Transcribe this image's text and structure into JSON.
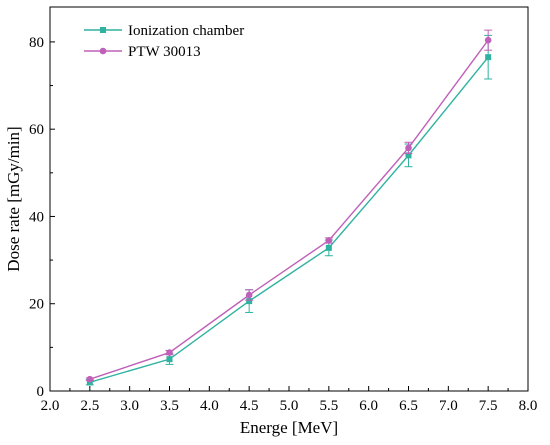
{
  "chart_data": {
    "type": "line",
    "xlabel": "Energe [MeV]",
    "ylabel": "Dose rate [mGy/min]",
    "xlim": [
      2.0,
      8.0
    ],
    "ylim": [
      0,
      88
    ],
    "x_ticks": [
      2.0,
      2.5,
      3.0,
      3.5,
      4.0,
      4.5,
      5.0,
      5.5,
      6.0,
      6.5,
      7.0,
      7.5,
      8.0
    ],
    "y_ticks": [
      0,
      20,
      40,
      60,
      80
    ],
    "x_tick_labels": [
      "2.0",
      "2.5",
      "3.0",
      "3.5",
      "4.0",
      "4.5",
      "5.0",
      "5.5",
      "6.0",
      "6.5",
      "7.0",
      "7.5",
      "8.0"
    ],
    "y_tick_labels": [
      "0",
      "20",
      "40",
      "60",
      "80"
    ],
    "grid": false,
    "legend_position": "top-left",
    "series": [
      {
        "name": "Ionization chamber",
        "color": "#2fb2a0",
        "marker": "square",
        "x": [
          2.5,
          3.5,
          4.5,
          5.5,
          6.5,
          7.5
        ],
        "y": [
          2.0,
          7.3,
          20.6,
          32.8,
          54.0,
          76.5
        ],
        "err": [
          0.6,
          1.2,
          2.6,
          1.8,
          2.6,
          5.0
        ]
      },
      {
        "name": "PTW 30013",
        "color": "#c060b8",
        "marker": "circle",
        "x": [
          2.5,
          3.5,
          4.5,
          5.5,
          6.5,
          7.5
        ],
        "y": [
          2.7,
          8.8,
          22.0,
          34.5,
          55.7,
          80.4
        ],
        "err": [
          0.3,
          0.5,
          1.2,
          0.6,
          1.3,
          2.3
        ]
      }
    ]
  }
}
